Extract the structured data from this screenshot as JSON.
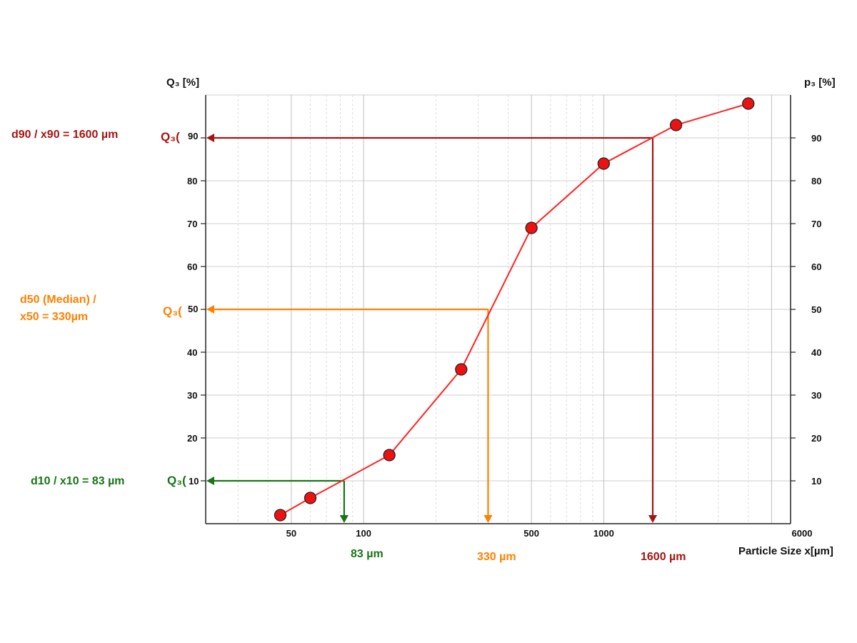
{
  "chart_data": {
    "type": "line",
    "xscale": "log",
    "xlim": [
      22,
      6000
    ],
    "ylim": [
      0,
      100
    ],
    "ylabel_left": "Q₃ [%]",
    "ylabel_right": "p₃ [%]",
    "xlabel": "Particle Size x[µm]",
    "y_ticks": [
      10,
      20,
      30,
      40,
      50,
      60,
      70,
      80,
      90
    ],
    "x_ticks": [
      {
        "value": 50,
        "label": "50"
      },
      {
        "value": 100,
        "label": "100"
      },
      {
        "value": 500,
        "label": "500"
      },
      {
        "value": 1000,
        "label": "1000"
      },
      {
        "value": 6000,
        "label": "6000"
      }
    ],
    "series": [
      {
        "color": "#ff2222",
        "points": [
          {
            "x": 45,
            "y": 2
          },
          {
            "x": 60,
            "y": 6
          },
          {
            "x": 128,
            "y": 16
          },
          {
            "x": 255,
            "y": 36
          },
          {
            "x": 500,
            "y": 69
          },
          {
            "x": 1000,
            "y": 84
          },
          {
            "x": 2000,
            "y": 93
          },
          {
            "x": 4000,
            "y": 98
          }
        ]
      }
    ],
    "annotations": [
      {
        "key": "d90",
        "label": "d90 / x90 = 1600 µm",
        "q_label": "Q₃(",
        "q_value": "90",
        "y": 90,
        "x": 1600,
        "x_label": "1600 µm",
        "color": "#a31515"
      },
      {
        "key": "d50",
        "label_line1": "d50 (Median) /",
        "label_line2": "x50 = 330µm",
        "q_label": "Q₃(",
        "q_value": "50",
        "y": 50,
        "x": 330,
        "x_label": "330 µm",
        "color": "#ff8000"
      },
      {
        "key": "d10",
        "label": "d10 / x10 = 83 µm",
        "q_label": "Q₃(",
        "q_value": "10",
        "y": 10,
        "x": 83,
        "x_label": "83 µm",
        "color": "#177517"
      }
    ]
  }
}
